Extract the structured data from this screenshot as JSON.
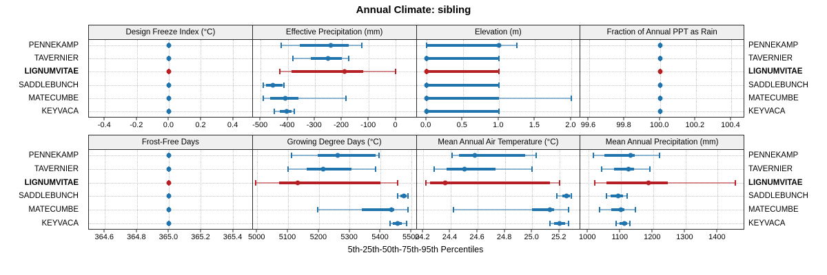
{
  "title": "Annual Climate: sibling",
  "footer": "5th-25th-50th-75th-95th Percentiles",
  "colors": {
    "site_default": "#1f74ad",
    "site_highlight": "#b62025",
    "strip_bg": "#efefef",
    "panel_border": "#2b2b2b",
    "grid": "#c6c6c6"
  },
  "sites": [
    {
      "name": "PENNEKAMP",
      "highlight": false
    },
    {
      "name": "TAVERNIER",
      "highlight": false
    },
    {
      "name": "LIGNUMVITAE",
      "highlight": true
    },
    {
      "name": "SADDLEBUNCH",
      "highlight": false
    },
    {
      "name": "MATECUMBE",
      "highlight": false
    },
    {
      "name": "KEYVACA",
      "highlight": false
    }
  ],
  "highlight_site": "LIGNUMVITAE",
  "percentile_levels": [
    "5th",
    "25th",
    "50th",
    "75th",
    "95th"
  ],
  "chart_data": {
    "type": "dot-whisker-percentiles",
    "title": "Annual Climate: sibling",
    "xlabel": "5th-25th-50th-75th-95th Percentiles",
    "grid": true,
    "site_order_top_to_bottom": [
      "PENNEKAMP",
      "TAVERNIER",
      "LIGNUMVITAE",
      "SADDLEBUNCH",
      "MATECUMBE",
      "KEYVACA"
    ],
    "panels": [
      {
        "title": "Design Freeze Index (°C)",
        "row": 0,
        "col": 0,
        "xlim": [
          -0.5,
          0.52
        ],
        "tick_values": [
          -0.4,
          -0.2,
          0.0,
          0.2,
          0.4
        ],
        "tick_labels": [
          "-0.4",
          "-0.2",
          "0.0",
          "0.2",
          "0.4"
        ],
        "values": [
          [
            0,
            0,
            0,
            0,
            0
          ],
          [
            0,
            0,
            0,
            0,
            0
          ],
          [
            0,
            0,
            0,
            0,
            0
          ],
          [
            0,
            0,
            0,
            0,
            0
          ],
          [
            0,
            0,
            0,
            0,
            0
          ],
          [
            0,
            0,
            0,
            0,
            0
          ]
        ]
      },
      {
        "title": "Effective Precipitation (mm)",
        "row": 0,
        "col": 1,
        "xlim": [
          -530,
          75
        ],
        "tick_values": [
          -500,
          -400,
          -300,
          -200,
          -100,
          0
        ],
        "tick_labels": [
          "-500",
          "-400",
          "-300",
          "-200",
          "-100",
          "0"
        ],
        "values": [
          [
            -425,
            -355,
            -240,
            -175,
            -125
          ],
          [
            -380,
            -315,
            -250,
            -200,
            -175
          ],
          [
            -430,
            -385,
            -190,
            -120,
            0
          ],
          [
            -490,
            -480,
            -455,
            -420,
            -415
          ],
          [
            -490,
            -465,
            -410,
            -360,
            -185
          ],
          [
            -450,
            -430,
            -405,
            -385,
            -375
          ]
        ]
      },
      {
        "title": "Elevation (m)",
        "row": 0,
        "col": 2,
        "xlim": [
          -0.14,
          2.12
        ],
        "tick_values": [
          0.0,
          0.5,
          1.0,
          1.5,
          2.0
        ],
        "tick_labels": [
          "0.0",
          "0.5",
          "1.0",
          "1.5",
          "2.0"
        ],
        "values": [
          [
            0,
            0,
            1,
            1,
            1.25
          ],
          [
            0,
            0,
            0,
            1,
            1
          ],
          [
            0,
            0,
            0,
            1,
            1
          ],
          [
            0,
            0,
            0,
            1,
            1
          ],
          [
            0,
            0,
            0,
            1,
            2
          ],
          [
            0,
            0,
            0,
            1,
            1
          ]
        ]
      },
      {
        "title": "Fraction of Annual PPT as Rain",
        "row": 0,
        "col": 3,
        "xlim": [
          99.55,
          100.47
        ],
        "tick_values": [
          99.6,
          99.8,
          100.0,
          100.2,
          100.4
        ],
        "tick_labels": [
          "99.6",
          "99.8",
          "100.0",
          "100.2",
          "100.4"
        ],
        "values": [
          [
            100,
            100,
            100,
            100,
            100
          ],
          [
            100,
            100,
            100,
            100,
            100
          ],
          [
            100,
            100,
            100,
            100,
            100
          ],
          [
            100,
            100,
            100,
            100,
            100
          ],
          [
            100,
            100,
            100,
            100,
            100
          ],
          [
            100,
            100,
            100,
            100,
            100
          ]
        ]
      },
      {
        "title": "Frost-Free Days",
        "row": 1,
        "col": 0,
        "xlim": [
          364.5,
          365.52
        ],
        "tick_values": [
          364.6,
          364.8,
          365.0,
          365.2,
          365.4
        ],
        "tick_labels": [
          "364.6",
          "364.8",
          "365.0",
          "365.2",
          "365.4"
        ],
        "values": [
          [
            365,
            365,
            365,
            365,
            365
          ],
          [
            365,
            365,
            365,
            365,
            365
          ],
          [
            365,
            365,
            365,
            365,
            365
          ],
          [
            365,
            365,
            365,
            365,
            365
          ],
          [
            365,
            365,
            365,
            365,
            365
          ],
          [
            365,
            365,
            365,
            365,
            365
          ]
        ]
      },
      {
        "title": "Growing Degree Days (°C)",
        "row": 1,
        "col": 1,
        "xlim": [
          4985,
          5515
        ],
        "tick_values": [
          5000,
          5100,
          5200,
          5300,
          5400,
          5500
        ],
        "tick_labels": [
          "5000",
          "5100",
          "5200",
          "5300",
          "5400",
          "5500"
        ],
        "values": [
          [
            5110,
            5195,
            5260,
            5385,
            5395
          ],
          [
            5100,
            5160,
            5215,
            5305,
            5385
          ],
          [
            4995,
            5070,
            5130,
            5400,
            5455
          ],
          [
            5455,
            5465,
            5475,
            5485,
            5490
          ],
          [
            5195,
            5340,
            5435,
            5445,
            5490
          ],
          [
            5430,
            5440,
            5455,
            5470,
            5485
          ]
        ]
      },
      {
        "title": "Mean Annual Air Temperature (°C)",
        "row": 1,
        "col": 2,
        "xlim": [
          24.15,
          25.35
        ],
        "tick_values": [
          24.2,
          24.4,
          24.6,
          24.8,
          25.0,
          25.2
        ],
        "tick_labels": [
          "24.2",
          "24.4",
          "24.6",
          "24.8",
          "25.0",
          "25.2"
        ],
        "values": [
          [
            24.41,
            24.46,
            24.58,
            24.95,
            25.03
          ],
          [
            24.28,
            24.37,
            24.5,
            24.73,
            25.0
          ],
          [
            24.22,
            24.25,
            24.36,
            25.13,
            25.2
          ],
          [
            25.18,
            25.22,
            25.25,
            25.28,
            25.29
          ],
          [
            24.42,
            25.0,
            25.13,
            25.16,
            25.27
          ],
          [
            25.13,
            25.16,
            25.2,
            25.24,
            25.27
          ]
        ]
      },
      {
        "title": "Mean Annual Precipitation (mm)",
        "row": 1,
        "col": 3,
        "xlim": [
          975,
          1480
        ],
        "tick_values": [
          1000,
          1100,
          1200,
          1300,
          1400
        ],
        "tick_labels": [
          "1000",
          "1100",
          "1200",
          "1300",
          "1400"
        ],
        "values": [
          [
            1015,
            1050,
            1130,
            1143,
            1220
          ],
          [
            1040,
            1078,
            1124,
            1141,
            1190
          ],
          [
            1020,
            1055,
            1185,
            1245,
            1455
          ],
          [
            1055,
            1068,
            1092,
            1106,
            1120
          ],
          [
            1035,
            1070,
            1100,
            1110,
            1145
          ],
          [
            1085,
            1095,
            1110,
            1120,
            1127
          ]
        ]
      }
    ]
  }
}
